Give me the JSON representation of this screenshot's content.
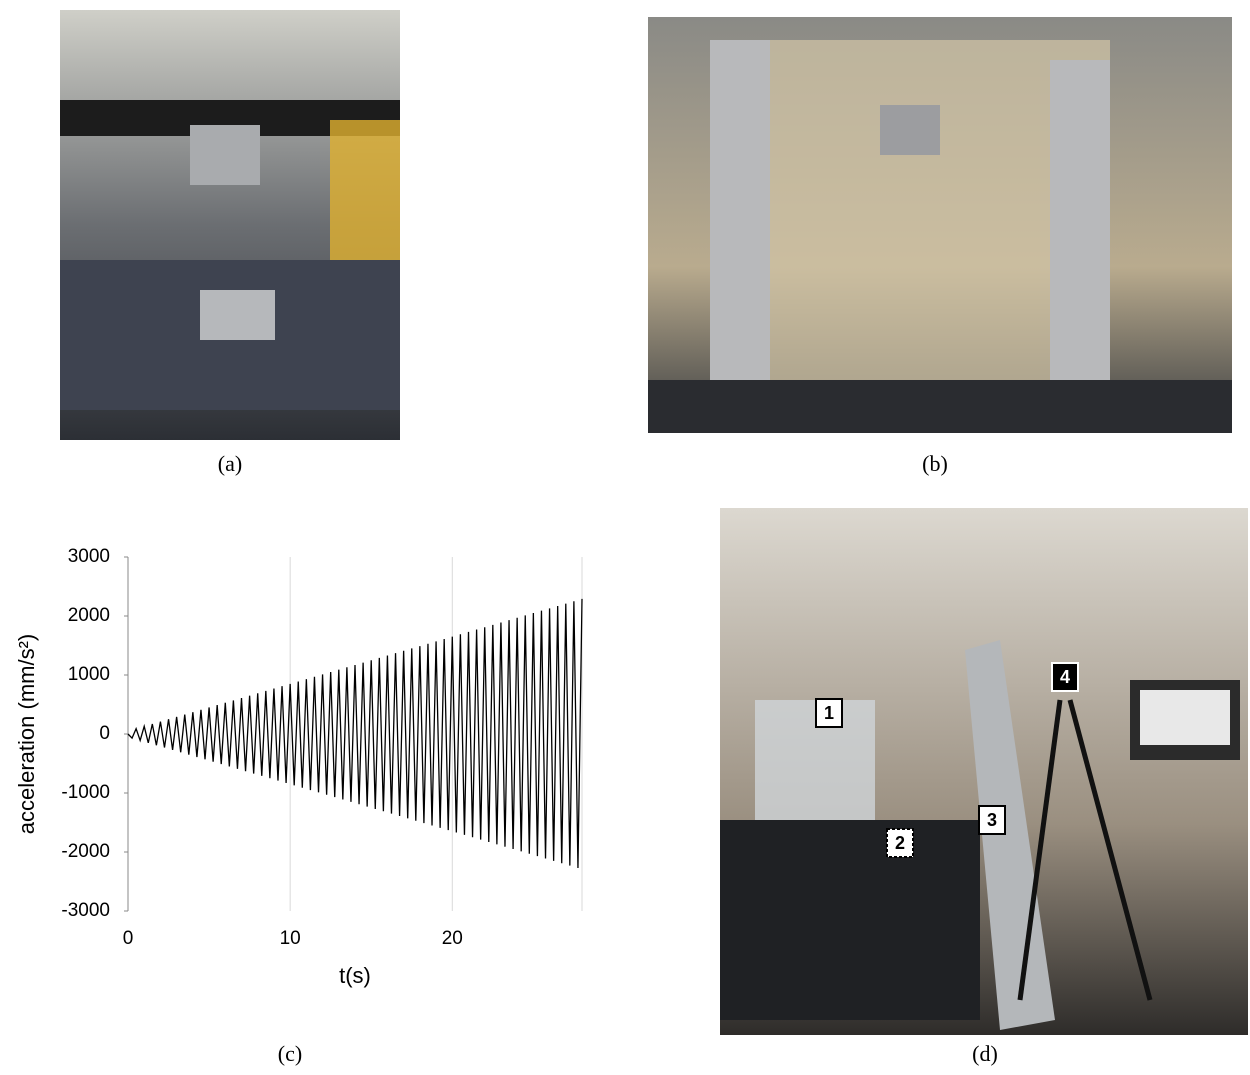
{
  "captions": [
    "(a)",
    "(b)",
    "(c)",
    "(d)"
  ],
  "photo_labels": [
    "1",
    "2",
    "3",
    "4"
  ],
  "chart_data": {
    "type": "line",
    "xlabel": "t(s)",
    "ylabel": "acceleration (mm/s²)",
    "x": [
      0,
      0.25,
      0.5,
      0.75,
      1,
      1.25,
      1.5,
      1.75,
      2,
      2.25,
      2.5,
      2.75,
      3,
      3.25,
      3.5,
      3.75,
      4,
      4.25,
      4.5,
      4.75,
      5,
      5.25,
      5.5,
      5.75,
      6,
      6.25,
      6.5,
      6.75,
      7,
      7.25,
      7.5,
      7.75,
      8,
      8.25,
      8.5,
      8.75,
      9,
      9.25,
      9.5,
      9.75,
      10,
      10.25,
      10.5,
      10.75,
      11,
      11.25,
      11.5,
      11.75,
      12,
      12.25,
      12.5,
      12.75,
      13,
      13.25,
      13.5,
      13.75,
      14,
      14.25,
      14.5,
      14.75,
      15,
      15.25,
      15.5,
      15.75,
      16,
      16.25,
      16.5,
      16.75,
      17,
      17.25,
      17.5,
      17.75,
      18,
      18.25,
      18.5,
      18.75,
      19,
      19.25,
      19.5,
      19.75,
      20,
      20.25,
      20.5,
      20.75,
      21,
      21.25,
      21.5,
      21.75,
      22,
      22.25,
      22.5,
      22.75,
      23,
      23.25,
      23.5,
      23.75,
      24,
      24.25,
      24.5,
      24.75,
      25,
      25.25,
      25.5,
      25.75,
      26,
      26.25,
      26.5,
      26.75,
      27,
      27.25,
      27.5,
      27.75,
      28
    ],
    "series": [
      {
        "color": "#000000",
        "values": [
          0,
          -70,
          90,
          -110,
          130,
          -150,
          170,
          -190,
          210,
          -230,
          250,
          -270,
          290,
          -310,
          330,
          -350,
          370,
          -390,
          410,
          -430,
          450,
          -470,
          490,
          -510,
          530,
          -550,
          570,
          -590,
          610,
          -630,
          650,
          -670,
          690,
          -710,
          730,
          -750,
          770,
          -790,
          810,
          -830,
          850,
          -870,
          890,
          -910,
          930,
          -950,
          970,
          -990,
          1010,
          -1030,
          1050,
          -1070,
          1090,
          -1110,
          1130,
          -1150,
          1170,
          -1190,
          1210,
          -1230,
          1250,
          -1270,
          1290,
          -1310,
          1330,
          -1350,
          1370,
          -1390,
          1410,
          -1430,
          1450,
          -1470,
          1490,
          -1510,
          1530,
          -1550,
          1570,
          -1590,
          1610,
          -1630,
          1650,
          -1670,
          1690,
          -1710,
          1730,
          -1750,
          1770,
          -1790,
          1810,
          -1830,
          1850,
          -1870,
          1890,
          -1910,
          1930,
          -1950,
          1970,
          -1990,
          2010,
          -2030,
          2050,
          -2070,
          2090,
          -2110,
          2130,
          -2150,
          2170,
          -2190,
          2210,
          -2230,
          2250,
          -2270,
          2290
        ]
      }
    ],
    "xlim": [
      0,
      28
    ],
    "ylim": [
      -3000,
      3000
    ],
    "xticks": [
      0,
      10,
      20
    ],
    "yticks": [
      -3000,
      -2000,
      -1000,
      0,
      1000,
      2000,
      3000
    ],
    "grid": "x"
  }
}
